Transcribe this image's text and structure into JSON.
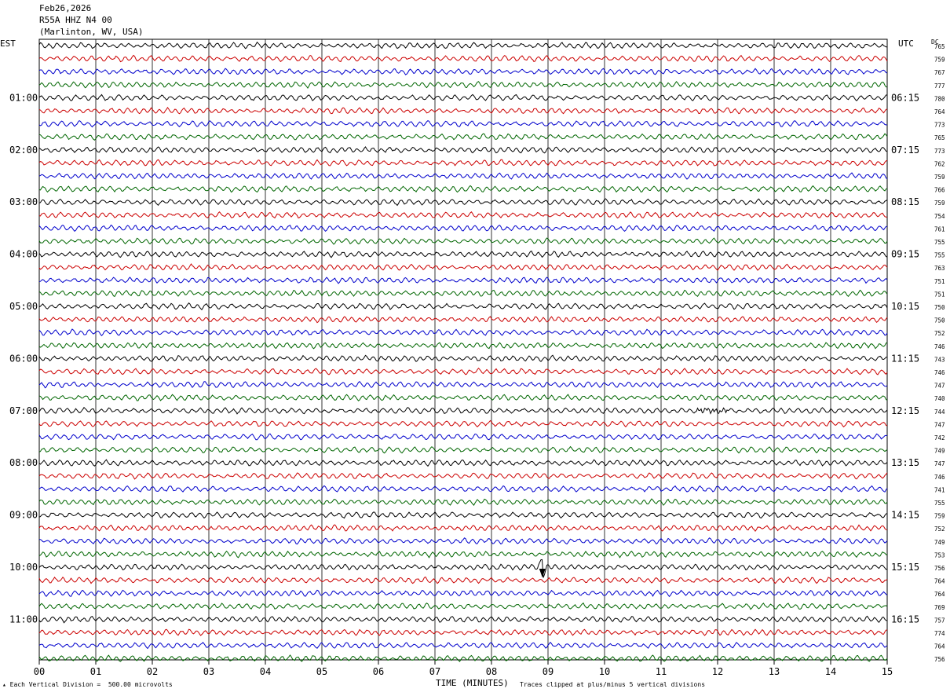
{
  "header": {
    "date": "Feb26,2026",
    "station": "R55A HHZ N4 00",
    "location": "(Marlinton, WV, USA)"
  },
  "left_tz": "EST",
  "right_tz": "UTC",
  "dc_label": "DC",
  "chart_data": {
    "type": "line",
    "subtype": "helicorder",
    "title": "R55A HHZ N4 00",
    "xlabel": "TIME (MINUTES)",
    "x_ticks": [
      "00",
      "01",
      "02",
      "03",
      "04",
      "05",
      "06",
      "07",
      "08",
      "09",
      "10",
      "11",
      "12",
      "13",
      "14",
      "15"
    ],
    "xlim": [
      0,
      15
    ],
    "rows_per_hour": 4,
    "trace_colors": [
      "#000000",
      "#cc0000",
      "#0000cc",
      "#006600"
    ],
    "left_hour_labels": [
      "01:00",
      "02:00",
      "03:00",
      "04:00",
      "05:00",
      "06:00",
      "07:00",
      "08:00",
      "09:00",
      "10:00",
      "11:00"
    ],
    "right_hour_labels": [
      "06:15",
      "07:15",
      "08:15",
      "09:15",
      "10:15",
      "11:15",
      "12:15",
      "13:15",
      "14:15",
      "15:15",
      "16:15"
    ],
    "dc_offsets": [
      765,
      759,
      767,
      777,
      780,
      764,
      773,
      765,
      773,
      762,
      759,
      766,
      759,
      754,
      761,
      755,
      755,
      763,
      751,
      751,
      750,
      750,
      752,
      746,
      743,
      746,
      747,
      740,
      744,
      747,
      742,
      749,
      747,
      746,
      741,
      755,
      759,
      752,
      749,
      753,
      756,
      764,
      764,
      769,
      757,
      774,
      764,
      756
    ],
    "events": [
      {
        "row": 40,
        "minute": 8.9,
        "note": "clipped spike"
      },
      {
        "row": 28,
        "minute": 11.9,
        "note": "small burst"
      }
    ]
  },
  "footer": {
    "scale": "Each Vertical Division =  500.00 microvolts",
    "time_label": "TIME (MINUTES)",
    "clip_note": "Traces clipped at plus/minus 5 vertical divisions"
  }
}
